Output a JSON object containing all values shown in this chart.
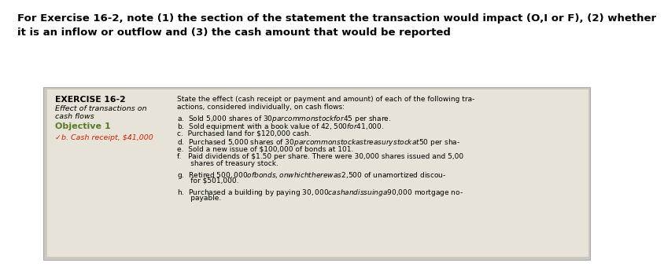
{
  "header_line1": "For Exercise 16-2, note (1) the section of the statement the transaction would impact (O,I or F), (2) whether",
  "header_line2": "it is an inflow or outflow and (3) the cash amount that would be reported",
  "header_fontsize": 9.5,
  "box_bg": "#e8e3d8",
  "outer_bg": "#ccc8c0",
  "white_bg": "#ffffff",
  "left_col": {
    "title": "EXERCISE 16-2",
    "subtitle1": "Effect of transactions on",
    "subtitle2": "cash flows",
    "objective": "Objective 1",
    "objective_color": "#5a7a2a",
    "answer": "✓b. Cash receipt, $41,000",
    "answer_color": "#cc2200"
  },
  "right_col_intro1": "State the effect (cash receipt or payment and amount) of each of the following tra-",
  "right_col_intro2": "actions, considered individually, on cash flows:",
  "items": [
    "a.  Sold 5,000 shares of $30 par common stock for $45 per share.",
    "b.  Sold equipment with a book value of $42,500 for $41,000.",
    "c.  Purchased land for $120,000 cash.",
    "d.  Purchased 5,000 shares of $30 par common stock as treasury stock at $50 per sha-",
    "e.  Sold a new issue of $100,000 of bonds at 101.",
    "f.   Paid dividends of $1.50 per share. There were 30,000 shares issued and 5,00",
    "      shares of treasury stock.",
    "g.  Retired $500,000 of bonds, on which there was $2,500 of unamortized discou-",
    "      for $501,000.",
    "h.  Purchased a building by paying $30,000 cash and issuing a $90,000 mortgage no-",
    "      payable."
  ]
}
